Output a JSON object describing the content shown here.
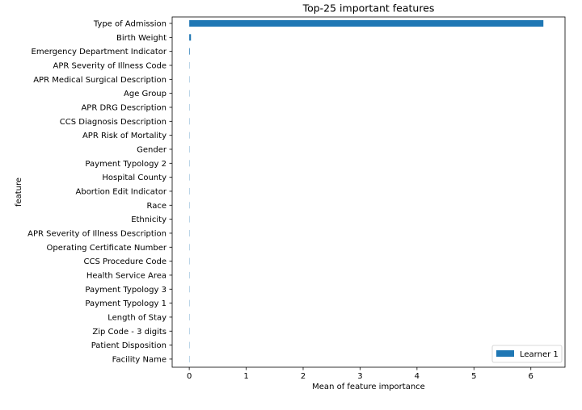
{
  "chart_data": {
    "type": "bar",
    "orientation": "horizontal",
    "title": "Top-25 important features",
    "xlabel": "Mean of feature importance",
    "ylabel": "feature",
    "xlim": [
      -0.3,
      6.6
    ],
    "xticks": [
      0,
      1,
      2,
      3,
      4,
      5,
      6
    ],
    "grid": false,
    "legend_position": "bottom-right",
    "bar_color": "#1f77b4",
    "categories": [
      "Type of Admission",
      "Birth Weight",
      "Emergency Department Indicator",
      "APR Severity of Illness Code",
      "APR Medical Surgical Description",
      "Age Group",
      "APR DRG Description",
      "CCS Diagnosis Description",
      "APR Risk of Mortality",
      "Gender",
      "Payment Typology 2",
      "Hospital County",
      "Abortion Edit Indicator",
      "Race",
      "Ethnicity",
      "APR Severity of Illness Description",
      "Operating Certificate Number",
      "CCS Procedure Code",
      "Health Service Area",
      "Payment Typology 3",
      "Payment Typology 1",
      "Length of Stay",
      "Zip Code - 3 digits",
      "Patient Disposition",
      "Facility Name"
    ],
    "series": [
      {
        "name": "Learner 1",
        "values": [
          6.22,
          0.03,
          0.01,
          0.002,
          0.001,
          0.001,
          0.001,
          0.001,
          0.001,
          0.0005,
          0.0005,
          0.0005,
          0.0005,
          0.0005,
          0.0005,
          0.0005,
          0.0005,
          0.0005,
          0.0005,
          0.0005,
          0.0005,
          0.0005,
          0.0005,
          0.0005,
          0.0005
        ]
      }
    ]
  }
}
